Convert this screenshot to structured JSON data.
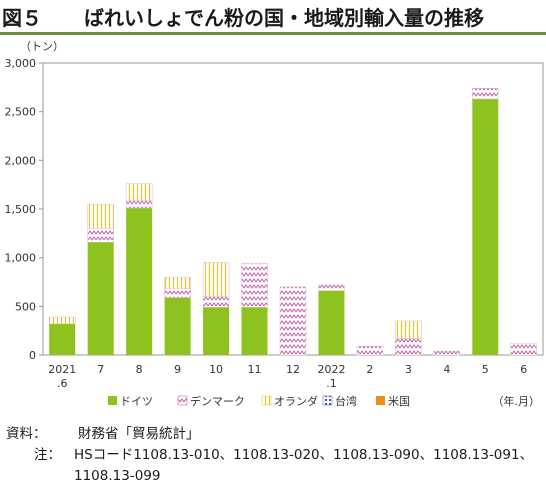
{
  "figure": {
    "label": "図５",
    "title": "ばれいしょでん粉の国・地域別輸入量の推移"
  },
  "chart_data": {
    "type": "bar",
    "stacked": true,
    "unit_label": "（トン）",
    "x_unit_label": "（年.月）",
    "ylim": [
      0,
      3000
    ],
    "y_ticks": [
      "0",
      "500",
      "1,000",
      "1,500",
      "2,000",
      "2,500",
      "3,000"
    ],
    "y_tick_values": [
      0,
      500,
      1000,
      1500,
      2000,
      2500,
      3000
    ],
    "grid": false,
    "legend_position": "bottom",
    "categories": [
      [
        "2021",
        ".6"
      ],
      [
        "7"
      ],
      [
        "8"
      ],
      [
        "9"
      ],
      [
        "10"
      ],
      [
        "11"
      ],
      [
        "12"
      ],
      [
        "2022",
        ".1"
      ],
      [
        "2"
      ],
      [
        "3"
      ],
      [
        "4"
      ],
      [
        "5"
      ],
      [
        "6"
      ]
    ],
    "series": [
      {
        "name": "ドイツ",
        "color": "#8dc21f",
        "pattern": "solid",
        "values": [
          320,
          1160,
          1510,
          590,
          490,
          490,
          0,
          660,
          0,
          0,
          0,
          2630,
          0
        ]
      },
      {
        "name": "デンマーク",
        "color": "#c15fa6",
        "pattern": "zigzag",
        "values": [
          0,
          140,
          80,
          90,
          110,
          450,
          700,
          60,
          90,
          170,
          40,
          110,
          120
        ]
      },
      {
        "name": "オランダ",
        "color": "#e8c52c",
        "pattern": "vertical-lines",
        "values": [
          70,
          250,
          170,
          120,
          350,
          0,
          0,
          0,
          0,
          180,
          0,
          0,
          0
        ]
      },
      {
        "name": "台湾",
        "color": "#4a5aa8",
        "pattern": "dots",
        "values": [
          0,
          0,
          0,
          0,
          0,
          0,
          0,
          0,
          0,
          0,
          0,
          0,
          0
        ]
      },
      {
        "name": "米国",
        "color": "#f08c1e",
        "pattern": "solid",
        "values": [
          0,
          0,
          0,
          0,
          0,
          0,
          0,
          0,
          0,
          0,
          0,
          0,
          0
        ]
      }
    ]
  },
  "notes": {
    "source_key": "資料：",
    "source_text": "財務省「貿易統計」",
    "note_key": "注：",
    "note_text": "HSコード1108.13-010、1108.13-020、1108.13-090、1108.13-091、1108.13-099"
  }
}
